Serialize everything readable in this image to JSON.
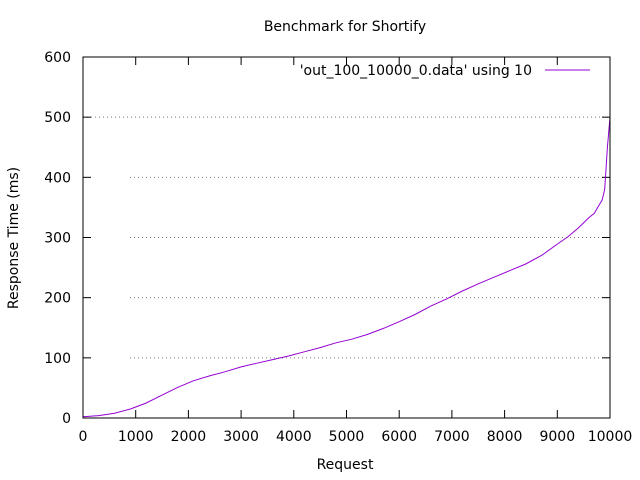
{
  "chart_data": {
    "type": "line",
    "title": "Benchmark for Shortify",
    "xlabel": "Request",
    "ylabel": "Response Time (ms)",
    "xlim": [
      0,
      10000
    ],
    "ylim": [
      0,
      600
    ],
    "xticks": [
      0,
      1000,
      2000,
      3000,
      4000,
      5000,
      6000,
      7000,
      8000,
      9000,
      10000
    ],
    "yticks": [
      0,
      100,
      200,
      300,
      400,
      500,
      600
    ],
    "grid": "horizontal dotted",
    "legend_position": "top-right",
    "series": [
      {
        "name": "'out_100_10000_0.data' using 10",
        "color": "#9400d3",
        "x": [
          0,
          300,
          600,
          900,
          1200,
          1500,
          1800,
          2100,
          2400,
          2700,
          3000,
          3300,
          3600,
          3900,
          4200,
          4500,
          4800,
          5100,
          5400,
          5700,
          6000,
          6300,
          6600,
          6900,
          7200,
          7500,
          7800,
          8100,
          8400,
          8700,
          9000,
          9200,
          9400,
          9600,
          9700,
          9800,
          9850,
          9900,
          9950,
          10000
        ],
        "values": [
          2,
          4,
          8,
          15,
          25,
          38,
          51,
          62,
          70,
          77,
          85,
          91,
          97,
          103,
          110,
          117,
          125,
          131,
          139,
          149,
          160,
          172,
          186,
          198,
          211,
          223,
          234,
          245,
          256,
          270,
          289,
          301,
          316,
          333,
          340,
          355,
          362,
          380,
          450,
          500
        ]
      }
    ]
  }
}
